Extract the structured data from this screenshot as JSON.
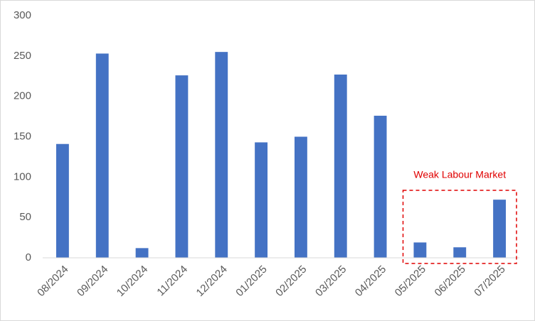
{
  "chart_data": {
    "type": "bar",
    "categories": [
      "08/2024",
      "09/2024",
      "10/2024",
      "11/2024",
      "12/2024",
      "01/2025",
      "02/2025",
      "03/2025",
      "04/2025",
      "05/2025",
      "06/2025",
      "07/2025"
    ],
    "values": [
      141,
      253,
      12,
      226,
      255,
      143,
      150,
      227,
      176,
      19,
      13,
      72
    ],
    "color": "#4472c4",
    "ylim": [
      0,
      300
    ],
    "yticks": [
      0,
      50,
      100,
      150,
      200,
      250,
      300
    ],
    "grid": false,
    "annotation": "Weak Labour Market"
  }
}
